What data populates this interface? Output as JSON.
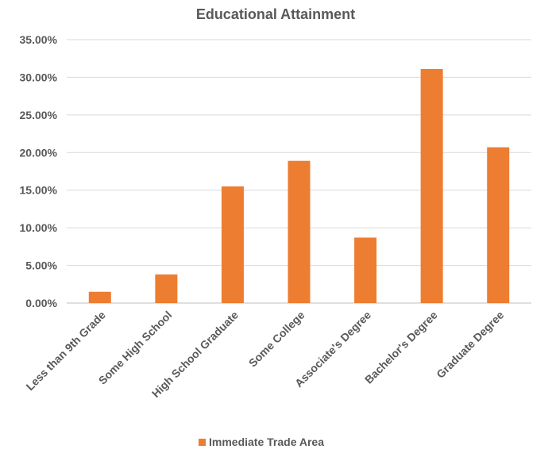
{
  "chart_data": {
    "type": "bar",
    "title": "Educational Attainment",
    "categories": [
      "Less than 9th Grade",
      "Some High School",
      "High School Graduate",
      "Some College",
      "Associate's Degree",
      "Bachelor's Degree",
      "Graduate Degree"
    ],
    "series": [
      {
        "name": "Immediate Trade Area",
        "values": [
          1.5,
          3.8,
          15.5,
          18.9,
          8.7,
          31.1,
          20.7
        ],
        "color": "#ed7d31"
      }
    ],
    "ylim": [
      0,
      35
    ],
    "yticks": [
      0,
      5,
      10,
      15,
      20,
      25,
      30,
      35
    ],
    "ytick_labels": [
      "0.00%",
      "5.00%",
      "10.00%",
      "15.00%",
      "20.00%",
      "25.00%",
      "30.00%",
      "35.00%"
    ],
    "grid": true,
    "legend_position": "bottom"
  }
}
